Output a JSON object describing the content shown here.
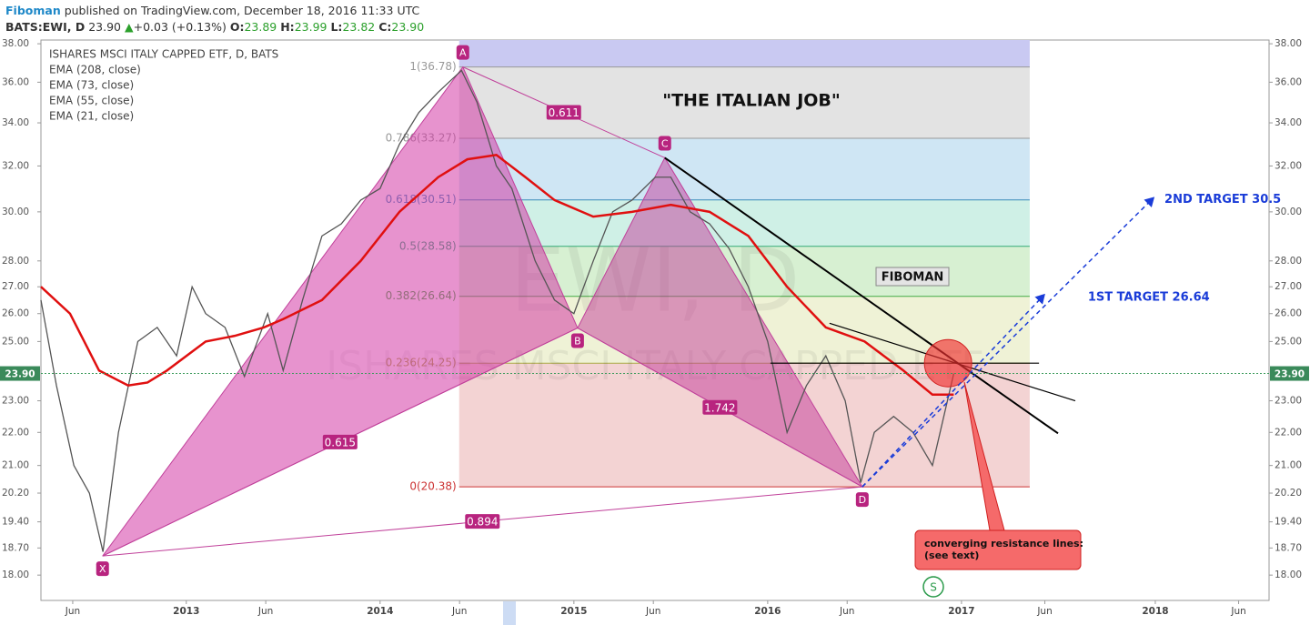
{
  "header": {
    "author": "Fiboman",
    "published": "published on TradingView.com, December 18, 2016 11:33 UTC",
    "symbol": "BATS:EWI, D",
    "price": "23.90",
    "change": "+0.03 (+0.13%)",
    "o_label": "O:",
    "o": "23.89",
    "h_label": "H:",
    "h": "23.99",
    "l_label": "L:",
    "l": "23.82",
    "c_label": "C:",
    "c": "23.90"
  },
  "chart_data": {
    "type": "line",
    "log_scale": true,
    "legend": [
      "ISHARES MSCI ITALY CAPPED ETF, D, BATS",
      "EMA (208, close)",
      "EMA (73, close)",
      "EMA (55, close)",
      "EMA (21, close)"
    ],
    "watermark": [
      "EWI, D",
      "ISHARES MSCI ITALY CAPPED ETF"
    ],
    "xlim": [
      2012.25,
      2018.587
    ],
    "xticks": [
      {
        "value": 2012.414,
        "label": "Jun"
      },
      {
        "value": 2013,
        "label": "2013"
      },
      {
        "value": 2013.41,
        "label": "Jun"
      },
      {
        "value": 2014,
        "label": "2014"
      },
      {
        "value": 2014.41,
        "label": "Jun"
      },
      {
        "value": 2015,
        "label": "2015"
      },
      {
        "value": 2015.41,
        "label": "Jun"
      },
      {
        "value": 2016,
        "label": "2016"
      },
      {
        "value": 2016.41,
        "label": "Jun"
      },
      {
        "value": 2017,
        "label": "2017"
      },
      {
        "value": 2017.43,
        "label": "Jun"
      },
      {
        "value": 2018,
        "label": "2018"
      },
      {
        "value": 2018.43,
        "label": "Jun"
      }
    ],
    "ylim": [
      17.37,
      38.2
    ],
    "yticks": [
      {
        "value": 38,
        "label": "38.00"
      },
      {
        "value": 36,
        "label": "36.00"
      },
      {
        "value": 34,
        "label": "34.00"
      },
      {
        "value": 32,
        "label": "32.00"
      },
      {
        "value": 30,
        "label": "30.00"
      },
      {
        "value": 28,
        "label": "28.00"
      },
      {
        "value": 27,
        "label": "27.00"
      },
      {
        "value": 26,
        "label": "26.00"
      },
      {
        "value": 25,
        "label": "25.00"
      },
      {
        "value": 23,
        "label": "23.00"
      },
      {
        "value": 22,
        "label": "22.00"
      },
      {
        "value": 21,
        "label": "21.00"
      },
      {
        "value": 20.2,
        "label": "20.20"
      },
      {
        "value": 19.4,
        "label": "19.40"
      },
      {
        "value": 18.7,
        "label": "18.70"
      },
      {
        "value": 18,
        "label": "18.00"
      }
    ],
    "last_price": {
      "value": 23.9,
      "label": "23.90"
    },
    "series": [
      {
        "name": "ISHARES MSCI ITALY CAPPED ETF",
        "color": "#555555",
        "x": [
          2012.25,
          2012.33,
          2012.42,
          2012.5,
          2012.57,
          2012.65,
          2012.75,
          2012.85,
          2012.95,
          2013.03,
          2013.1,
          2013.2,
          2013.3,
          2013.42,
          2013.5,
          2013.6,
          2013.7,
          2013.8,
          2013.9,
          2014.0,
          2014.1,
          2014.2,
          2014.3,
          2014.42,
          2014.5,
          2014.6,
          2014.68,
          2014.8,
          2014.9,
          2015.0,
          2015.1,
          2015.2,
          2015.3,
          2015.42,
          2015.5,
          2015.6,
          2015.7,
          2015.8,
          2015.9,
          2016.0,
          2016.1,
          2016.2,
          2016.3,
          2016.4,
          2016.48,
          2016.55,
          2016.65,
          2016.75,
          2016.85,
          2016.96
        ],
        "values": [
          26.5,
          23.5,
          21,
          20.2,
          18.6,
          22,
          25,
          25.5,
          24.5,
          27,
          26,
          25.5,
          23.8,
          26,
          24,
          26.5,
          29,
          29.5,
          30.5,
          31,
          33,
          34.5,
          35.5,
          36.6,
          35,
          32,
          31,
          28,
          26.5,
          26,
          28,
          30,
          30.5,
          31.5,
          31.5,
          30,
          29.5,
          28.5,
          27,
          25,
          22,
          23.5,
          24.5,
          23,
          20.5,
          22,
          22.5,
          22,
          21,
          23.9
        ]
      },
      {
        "name": "EMA (208, close)",
        "color": "#e01010",
        "x": [
          2012.25,
          2012.4,
          2012.55,
          2012.7,
          2012.8,
          2012.9,
          2013.1,
          2013.25,
          2013.4,
          2013.5,
          2013.7,
          2013.9,
          2014.1,
          2014.3,
          2014.45,
          2014.6,
          2014.75,
          2014.9,
          2015.1,
          2015.3,
          2015.5,
          2015.7,
          2015.9,
          2016.1,
          2016.3,
          2016.5,
          2016.7,
          2016.85,
          2016.96
        ],
        "values": [
          27,
          26,
          24,
          23.5,
          23.6,
          24,
          25,
          25.2,
          25.5,
          25.8,
          26.5,
          28,
          30,
          31.5,
          32.3,
          32.5,
          31.5,
          30.5,
          29.8,
          30,
          30.3,
          30,
          29,
          27,
          25.5,
          25,
          24,
          23.2,
          23.2
        ]
      }
    ],
    "pattern": {
      "labels": [
        "X",
        "A",
        "B",
        "C",
        "D"
      ],
      "x": [
        2012.568,
        2014.427,
        2015.019,
        2015.469,
        2016.488
      ],
      "values": [
        18.49,
        36.78,
        25.48,
        32.37,
        20.38
      ]
    },
    "ratios": [
      "0.615",
      "0.611",
      "1.742",
      "0.894"
    ],
    "fib": {
      "x": [
        2014.408,
        2017.352
      ],
      "levels": [
        {
          "value": 36.78,
          "label": "1(36.78)"
        },
        {
          "value": 33.27,
          "label": "0.786(33.27)"
        },
        {
          "value": 30.51,
          "label": "0.618(30.51)"
        },
        {
          "value": 28.58,
          "label": "0.5(28.58)"
        },
        {
          "value": 26.64,
          "label": "0.382(26.64)"
        },
        {
          "value": 24.25,
          "label": "0.236(24.25)"
        },
        {
          "value": 20.38,
          "label": "0(20.38)"
        }
      ]
    },
    "trend_lines": [
      {
        "x": [
          2015.469,
          2017.498
        ],
        "values": [
          32.37,
          21.97
        ]
      },
      {
        "x": [
          2016.319,
          2017.587
        ],
        "values": [
          25.65,
          23.0
        ]
      },
      {
        "x": [
          2016.014,
          2017.4
        ],
        "values": [
          24.25,
          24.25
        ]
      }
    ],
    "targets": [
      {
        "label": "1ST TARGET 26.64",
        "x": [
          2016.488,
          2017.427
        ],
        "values": [
          20.38,
          26.7
        ]
      },
      {
        "label": "2ND TARGET 30.5",
        "x": [
          2016.488,
          2017.991
        ],
        "values": [
          20.38,
          30.6
        ]
      }
    ],
    "annotations": {
      "title": "\"THE ITALIAN JOB\"",
      "brand": "FIBOMAN",
      "callout": "converging resistance lines: (see text)",
      "marker": "S"
    }
  }
}
